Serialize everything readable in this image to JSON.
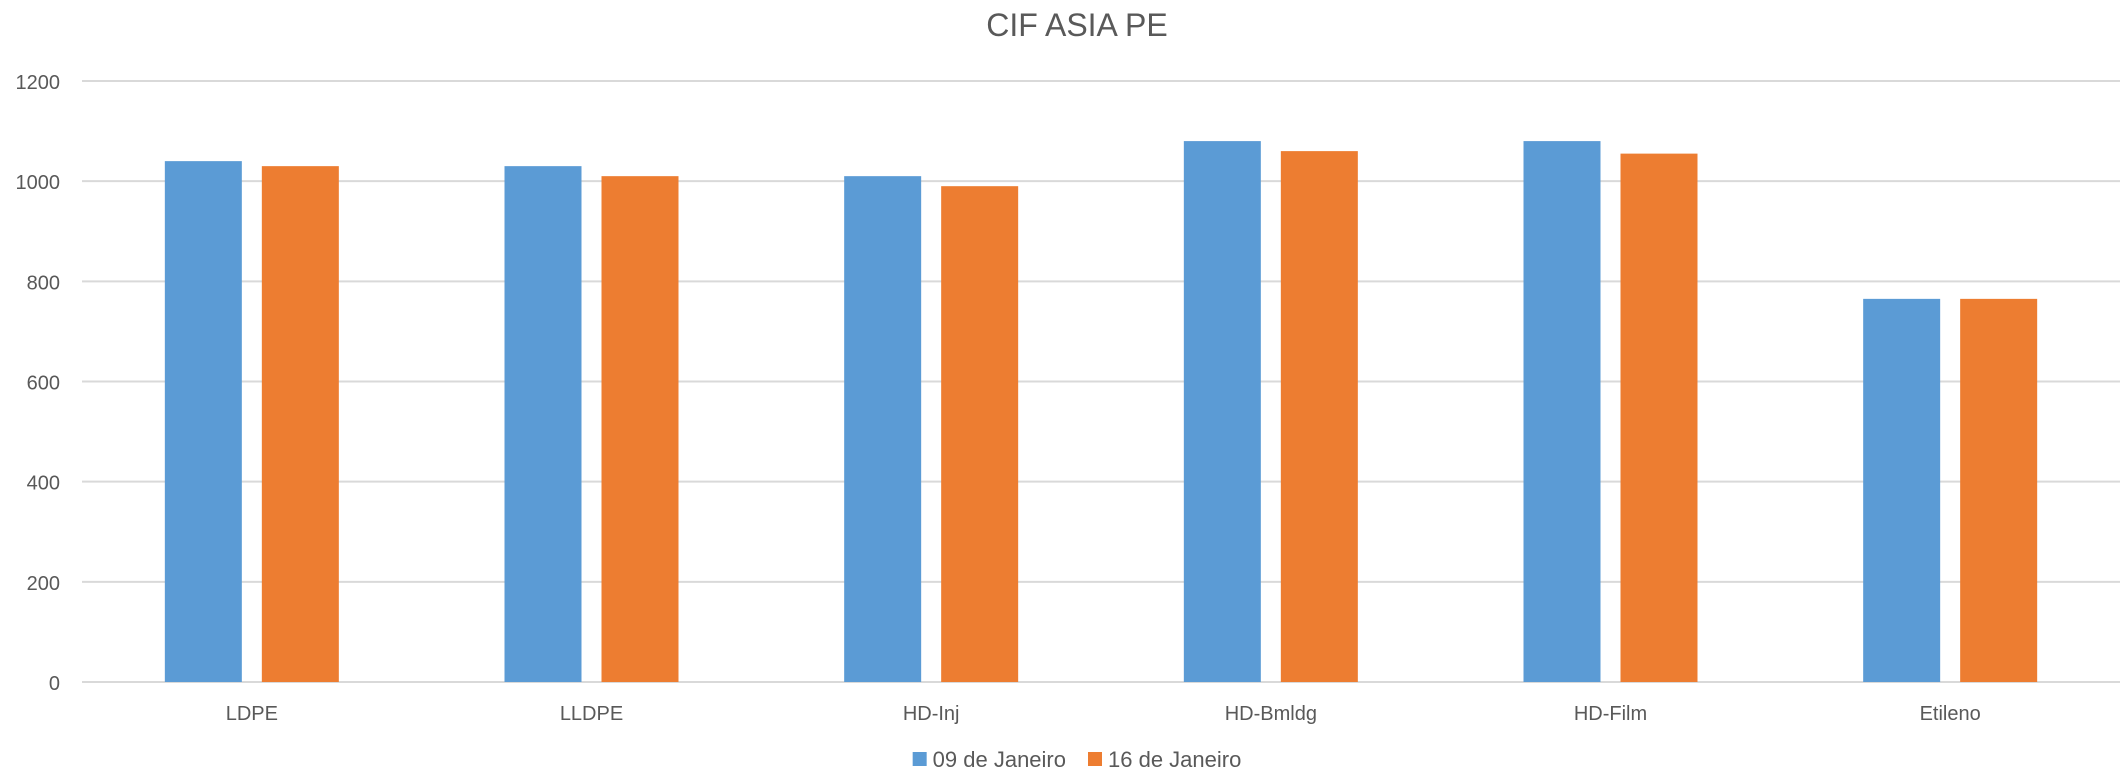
{
  "chart_data": {
    "type": "bar",
    "title": "CIF ASIA PE",
    "xlabel": "",
    "ylabel": "",
    "categories": [
      "LDPE",
      "LLDPE",
      "HD-Inj",
      "HD-Bmldg",
      "HD-Film",
      "Etileno"
    ],
    "series": [
      {
        "name": "09 de Janeiro",
        "color": "#5B9BD5",
        "values": [
          1040,
          1030,
          1010,
          1080,
          1080,
          765
        ]
      },
      {
        "name": "16 de Janeiro",
        "color": "#ED7D31",
        "values": [
          1030,
          1010,
          990,
          1060,
          1055,
          765
        ]
      }
    ],
    "ylim": [
      0,
      1200
    ],
    "yticks": [
      "0",
      "200",
      "400",
      "600",
      "800",
      "1000",
      "1200"
    ],
    "grid": true,
    "legend_position": "bottom-center"
  }
}
